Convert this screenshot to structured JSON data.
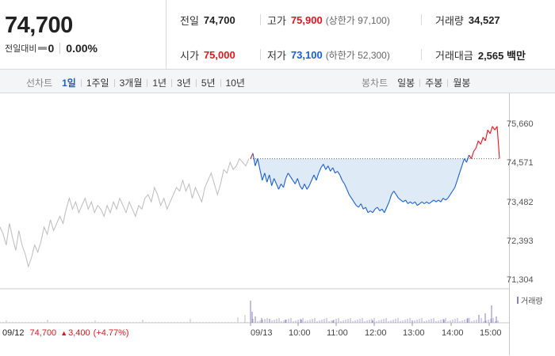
{
  "summary": {
    "price": "74,700",
    "change_label": "전일대비",
    "change_value": "0",
    "change_rate": "0.00%"
  },
  "stats": {
    "prev_close": {
      "label": "전일",
      "value": "74,700"
    },
    "high": {
      "label": "고가",
      "value": "75,900",
      "sub": "(상한가 97,100)"
    },
    "volume": {
      "label": "거래량",
      "value": "34,527"
    },
    "open": {
      "label": "시가",
      "value": "75,000"
    },
    "low": {
      "label": "저가",
      "value": "73,100",
      "sub": "(하한가 52,300)"
    },
    "amount": {
      "label": "거래대금",
      "value": "2,565 백만"
    }
  },
  "tabs": {
    "line_head": "선차트",
    "line": [
      "1일",
      "1주일",
      "3개월",
      "1년",
      "3년",
      "5년",
      "10년"
    ],
    "line_active": 0,
    "candle_head": "봉차트",
    "candle": [
      "일봉",
      "주봉",
      "월봉"
    ]
  },
  "chart_data": {
    "type": "line",
    "y_ticks": [
      "75,660",
      "74,571",
      "73,482",
      "72,393",
      "71,304"
    ],
    "y_tick_values": [
      75660,
      74571,
      73482,
      72393,
      71304
    ],
    "ylim": [
      71304,
      75660
    ],
    "reference_price": 74700,
    "x_ticks": [
      "09/13",
      "10:00",
      "11:00",
      "12:00",
      "13:00",
      "14:00",
      "15:00"
    ],
    "prev_day": {
      "date": "09/12",
      "close": "74,700",
      "change": "3,400",
      "change_rate": "(+4.77%)",
      "values": [
        72800,
        72600,
        72300,
        72900,
        72500,
        72150,
        72700,
        72300,
        72050,
        71700,
        71950,
        72300,
        72100,
        72400,
        72800,
        72600,
        73000,
        72700,
        72900,
        73100,
        72900,
        73300,
        73600,
        73300,
        73500,
        73200,
        73400,
        73600,
        73300,
        73500,
        73200,
        73400,
        73300,
        73100,
        73400,
        73200,
        73500,
        73300,
        73600,
        73400,
        73200,
        73500,
        73300,
        73100,
        73400,
        73300,
        73600,
        73700,
        73500,
        73900,
        73700,
        73400,
        73600,
        73300,
        73500,
        73700,
        73900,
        73800,
        74100,
        73800,
        74000,
        73600,
        73900,
        73700,
        73500,
        73900,
        74100,
        74300,
        74000,
        73700,
        74000,
        74400,
        74300,
        74600,
        74400,
        74500,
        74700,
        74600,
        74500,
        74700
      ]
    },
    "today": {
      "date": "09/13",
      "values": [
        74700,
        74850,
        74500,
        74700,
        74400,
        74100,
        74300,
        74050,
        74250,
        73950,
        74150,
        74000,
        73850,
        74000,
        73900,
        74150,
        74300,
        74200,
        74100,
        74000,
        74150,
        73950,
        73850,
        74000,
        73850,
        73950,
        74100,
        74250,
        74100,
        74300,
        74450,
        74550,
        74400,
        74500,
        74350,
        74450,
        74300,
        74350,
        74250,
        74100,
        74000,
        73850,
        73700,
        73600,
        73500,
        73400,
        73350,
        73450,
        73300,
        73350,
        73200,
        73250,
        73200,
        73300,
        73350,
        73250,
        73300,
        73200,
        73350,
        73500,
        73700,
        73800,
        73700,
        73600,
        73550,
        73500,
        73550,
        73450,
        73500,
        73450,
        73500,
        73400,
        73450,
        73500,
        73450,
        73500,
        73450,
        73500,
        73550,
        73500,
        73550,
        73500,
        73600,
        73550,
        73600,
        73700,
        73800,
        73900,
        74100,
        74300,
        74500,
        74700,
        74600,
        74800,
        74700,
        74900,
        75000,
        75200,
        75100,
        75300,
        75200,
        75500,
        75400,
        75600,
        75500,
        75600,
        74700
      ]
    },
    "volume_legend": "거래량"
  },
  "colors": {
    "up": "#e0161e",
    "down": "#1a5fd1",
    "prev_line": "#bcbcbc",
    "fill": "#dfeaf7",
    "volume": "#8a7ec8"
  }
}
